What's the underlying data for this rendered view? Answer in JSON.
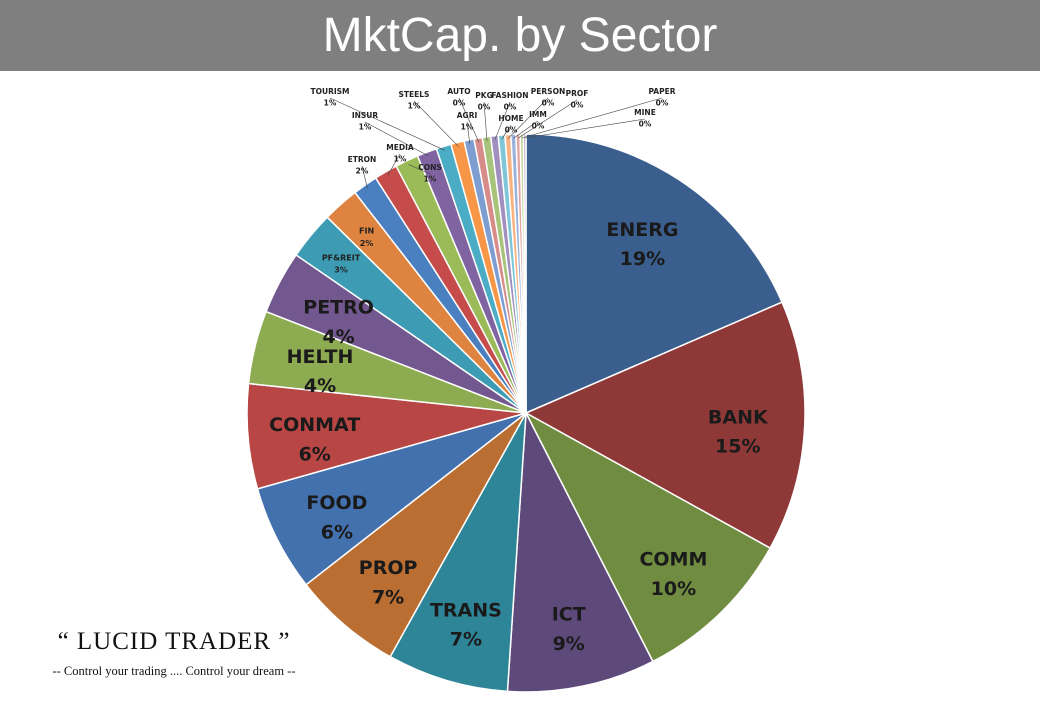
{
  "header": {
    "title": "MktCap. by Sector"
  },
  "branding": {
    "name": "“ LUCID TRADER ”",
    "tagline": "-- Control your trading .... Control your dream --"
  },
  "chart_data": {
    "type": "pie",
    "title": "MktCap. by Sector",
    "unit": "%",
    "slices": [
      {
        "label": "ENERG",
        "value": 19.2,
        "display": "19%",
        "color": "#3A5F8E"
      },
      {
        "label": "BANK",
        "value": 15.1,
        "display": "15%",
        "color": "#8E3937"
      },
      {
        "label": "COMM",
        "value": 9.8,
        "display": "10%",
        "color": "#6F8C40"
      },
      {
        "label": "ICT",
        "value": 8.9,
        "display": "9%",
        "color": "#5E4A7A"
      },
      {
        "label": "TRANS",
        "value": 7.3,
        "display": "7%",
        "color": "#2E8597"
      },
      {
        "label": "PROP",
        "value": 6.6,
        "display": "7%",
        "color": "#BA6E32"
      },
      {
        "label": "FOOD",
        "value": 6.4,
        "display": "6%",
        "color": "#4371AE"
      },
      {
        "label": "CONMAT",
        "value": 6.3,
        "display": "6%",
        "color": "#B74644"
      },
      {
        "label": "HELTH",
        "value": 4.4,
        "display": "4%",
        "color": "#8DAB50"
      },
      {
        "label": "PETRO",
        "value": 3.8,
        "display": "4%",
        "color": "#735890"
      },
      {
        "label": "PF&REIT",
        "value": 2.9,
        "display": "3%",
        "color": "#3D9CB3"
      },
      {
        "label": "FIN",
        "value": 2.2,
        "display": "2%",
        "color": "#DE8440"
      },
      {
        "label": "ETRON",
        "value": 1.5,
        "display": "2%",
        "color": "#4A7FC0"
      },
      {
        "label": "MEDIA",
        "value": 1.4,
        "display": "1%",
        "color": "#C54C4A"
      },
      {
        "label": "CONS",
        "value": 1.4,
        "display": "1%",
        "color": "#9BBB59"
      },
      {
        "label": "INSUR",
        "value": 1.2,
        "display": "1%",
        "color": "#8064A2"
      },
      {
        "label": "TOURISM",
        "value": 0.9,
        "display": "1%",
        "color": "#4BACC6"
      },
      {
        "label": "STEELS",
        "value": 0.8,
        "display": "1%",
        "color": "#F79646"
      },
      {
        "label": "AGRI",
        "value": 0.6,
        "display": "1%",
        "color": "#7E9DD0"
      },
      {
        "label": "AUTO",
        "value": 0.5,
        "display": "0%",
        "color": "#D78C8A"
      },
      {
        "label": "PKG",
        "value": 0.5,
        "display": "0%",
        "color": "#A7C47A"
      },
      {
        "label": "FASHION",
        "value": 0.45,
        "display": "0%",
        "color": "#A08FBF"
      },
      {
        "label": "HOME",
        "value": 0.4,
        "display": "0%",
        "color": "#7FC6D8"
      },
      {
        "label": "PERSON",
        "value": 0.35,
        "display": "0%",
        "color": "#F8B27F"
      },
      {
        "label": "IMM",
        "value": 0.3,
        "display": "0%",
        "color": "#98B2DC"
      },
      {
        "label": "PROF",
        "value": 0.25,
        "display": "0%",
        "color": "#E2A5A3"
      },
      {
        "label": "PAPER",
        "value": 0.2,
        "display": "0%",
        "color": "#C3D69B"
      },
      {
        "label": "MINE",
        "value": 0.15,
        "display": "0%",
        "color": "#B3A2C7"
      }
    ]
  }
}
